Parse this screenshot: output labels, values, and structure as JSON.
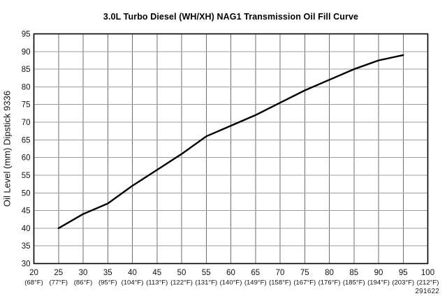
{
  "page": {
    "background": "#ffffff",
    "code": "291622"
  },
  "chart_data": {
    "type": "line",
    "title": "3.0L Turbo Diesel (WH/XH) NAG1 Transmission Oil Fill Curve",
    "xlabel": "",
    "ylabel": "Oil Level (mm) Dipstick 9336",
    "xlim": [
      20,
      100
    ],
    "ylim": [
      30,
      95
    ],
    "grid": true,
    "legend": "none",
    "x_ticks": [
      20,
      25,
      30,
      35,
      40,
      45,
      50,
      55,
      60,
      65,
      70,
      75,
      80,
      85,
      90,
      95,
      100
    ],
    "x_tick_labels_fahrenheit": [
      "(68°F)",
      "(77°F)",
      "(86°F)",
      "(95°F)",
      "(104°F)",
      "(113°F)",
      "(122°F)",
      "(131°F)",
      "(140°F)",
      "(149°F)",
      "(158°F)",
      "(167°F)",
      "(176°F)",
      "(185°F)",
      "(194°F)",
      "(203°F)",
      "(212°F)"
    ],
    "y_ticks": [
      30,
      35,
      40,
      45,
      50,
      55,
      60,
      65,
      70,
      75,
      80,
      85,
      90,
      95
    ],
    "colors": {
      "line": "#000000",
      "frame": "#000000",
      "grid_vertical": "#6f6f6f",
      "grid_horizontal": "#9b9b9b",
      "text": "#111111"
    },
    "series": [
      {
        "name": "Transmission oil fill curve",
        "x": [
          25,
          30,
          35,
          40,
          45,
          50,
          55,
          60,
          65,
          70,
          75,
          80,
          85,
          90,
          95
        ],
        "y": [
          40,
          44,
          47,
          52,
          56.5,
          61,
          66,
          69,
          72,
          75.5,
          79,
          82,
          85,
          87.5,
          89
        ]
      }
    ]
  }
}
